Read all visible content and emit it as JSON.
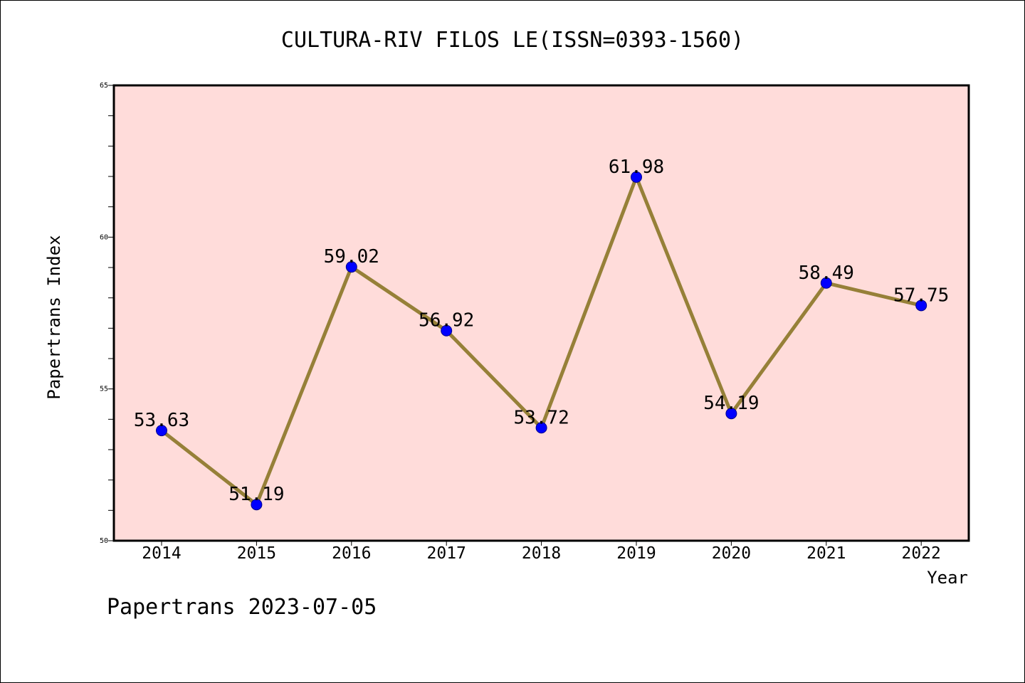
{
  "chart_data": {
    "type": "line",
    "title": "CULTURA-RIV FILOS LE(ISSN=0393-1560)",
    "xlabel": "Year",
    "ylabel": "Papertrans Index",
    "categories": [
      "2014",
      "2015",
      "2016",
      "2017",
      "2018",
      "2019",
      "2020",
      "2021",
      "2022"
    ],
    "values": [
      53.63,
      51.19,
      59.02,
      56.92,
      53.72,
      61.98,
      54.19,
      58.49,
      57.75
    ],
    "data_labels": [
      "53.63",
      "51.19",
      "59.02",
      "56.92",
      "53.72",
      "61.98",
      "54.19",
      "58.49",
      "57.75"
    ],
    "ylim": [
      50,
      65
    ],
    "yticks": [
      50,
      55,
      60,
      65
    ],
    "ytick_labels": [
      "50",
      "55",
      "60",
      "65"
    ],
    "y_minor_step": 1,
    "grid": false,
    "legend": "none",
    "footer": "Papertrans 2023-07-05",
    "colors": {
      "plot_background": "#FFDCDA",
      "line": "#968038",
      "marker": "#0000FF",
      "marker_edge": "#00008B",
      "axes": "#000000"
    }
  }
}
